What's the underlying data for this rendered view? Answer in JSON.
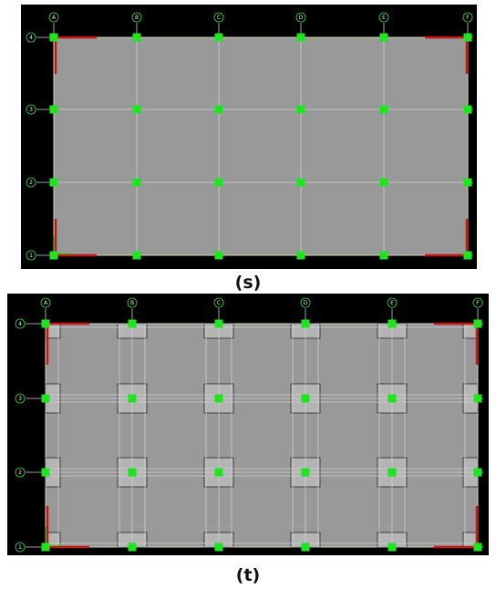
{
  "figure_s": {
    "caption": "(s)",
    "column_grid_labels": [
      "A",
      "B",
      "C",
      "D",
      "E",
      "F"
    ],
    "row_grid_labels": [
      "4",
      "3",
      "2",
      "1"
    ]
  },
  "figure_t": {
    "caption": "(t)",
    "column_grid_labels": [
      "A",
      "B",
      "C",
      "D",
      "E",
      "F"
    ],
    "row_grid_labels": [
      "4",
      "3",
      "2",
      "1"
    ]
  },
  "colors": {
    "canvas_background": "#000000",
    "slab": "#999999",
    "slab_outline": "#e6e65a",
    "grid_line": "#cfcfcf",
    "column_node": "#1ee61e",
    "shear_wall": "#c81414",
    "drop_panel": "#b4b4b4",
    "bubble": "#3cdc3c"
  },
  "icons": {
    "column_node": "green-square-icon",
    "grid_bubble": "grid-bubble-icon",
    "axis_triad": "xy-axis-icon"
  }
}
